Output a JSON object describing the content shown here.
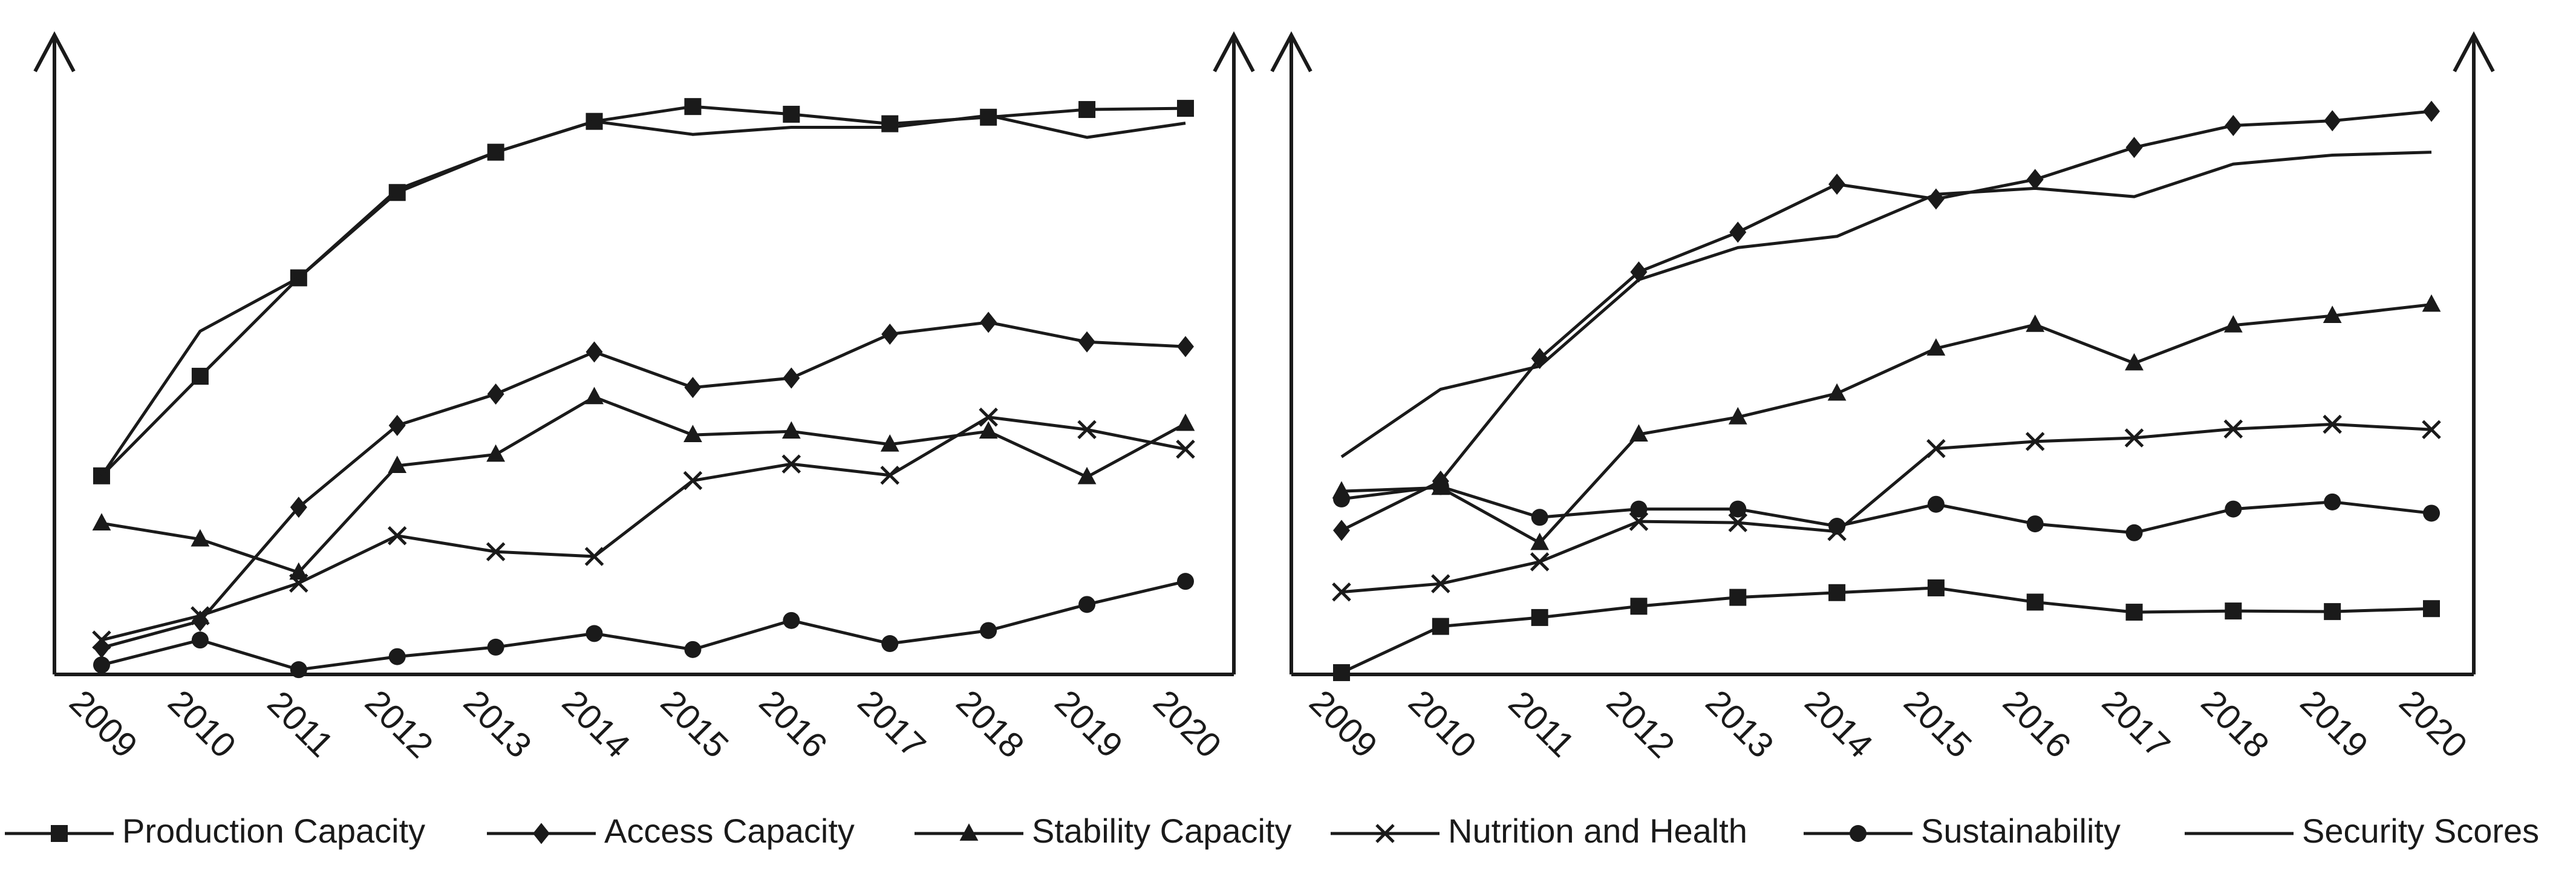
{
  "chart_data": [
    {
      "type": "line",
      "title": "",
      "xlabel": "",
      "ylabel": "",
      "categories": [
        "2009",
        "2010",
        "2011",
        "2012",
        "2013",
        "2014",
        "2015",
        "2016",
        "2017",
        "2018",
        "2019",
        "2020"
      ],
      "ylim": [
        0,
        100
      ],
      "grid": false,
      "series": [
        {
          "name": "Production Capacity",
          "marker": "square",
          "values": [
            33.5,
            50.3,
            66.9,
            81.3,
            88.1,
            93.3,
            95.8,
            94.5,
            92.9,
            94.0,
            95.3,
            95.5
          ]
        },
        {
          "name": "Access Capacity",
          "marker": "diamond",
          "values": [
            4.5,
            9.0,
            28.2,
            42.0,
            47.3,
            54.4,
            48.4,
            50.0,
            57.4,
            59.4,
            56.1,
            55.3
          ]
        },
        {
          "name": "Stability Capacity",
          "marker": "triangle",
          "values": [
            25.5,
            22.8,
            17.2,
            35.2,
            37.1,
            46.8,
            40.4,
            41.0,
            38.8,
            41.0,
            33.3,
            42.3
          ]
        },
        {
          "name": "Nutrition and Health",
          "marker": "x",
          "values": [
            5.8,
            9.9,
            15.4,
            23.4,
            20.7,
            19.9,
            32.7,
            35.5,
            33.6,
            43.4,
            41.3,
            38.0
          ]
        },
        {
          "name": "Sustainability",
          "marker": "circle",
          "values": [
            1.6,
            5.8,
            0.8,
            3.0,
            4.6,
            6.9,
            4.2,
            9.1,
            5.2,
            7.4,
            11.8,
            15.7
          ]
        },
        {
          "name": "Security Scores",
          "marker": "dash",
          "values": [
            33.5,
            57.9,
            66.9,
            81.8,
            88.1,
            93.3,
            91.1,
            92.3,
            92.3,
            94.3,
            90.6,
            93.0
          ]
        }
      ]
    },
    {
      "type": "line",
      "title": "",
      "xlabel": "",
      "ylabel": "",
      "categories": [
        "2009",
        "2010",
        "2011",
        "2012",
        "2013",
        "2014",
        "2015",
        "2016",
        "2017",
        "2018",
        "2019",
        "2020"
      ],
      "ylim": [
        0,
        100
      ],
      "grid": false,
      "series": [
        {
          "name": "Production Capacity",
          "marker": "square",
          "values": [
            0.3,
            8.1,
            9.6,
            11.5,
            13.0,
            13.8,
            14.6,
            12.2,
            10.5,
            10.7,
            10.6,
            11.1
          ]
        },
        {
          "name": "Access Capacity",
          "marker": "diamond",
          "values": [
            24.3,
            32.6,
            53.3,
            67.9,
            74.6,
            82.7,
            80.2,
            83.5,
            88.9,
            92.6,
            93.4,
            95.0
          ]
        },
        {
          "name": "Stability Capacity",
          "marker": "triangle",
          "values": [
            30.9,
            31.5,
            22.2,
            40.5,
            43.4,
            47.4,
            55.0,
            59.0,
            52.5,
            58.9,
            60.5,
            62.4
          ]
        },
        {
          "name": "Nutrition and Health",
          "marker": "x",
          "values": [
            13.9,
            15.3,
            19.0,
            25.8,
            25.6,
            24.1,
            38.1,
            39.3,
            39.9,
            41.4,
            42.2,
            41.3
          ]
        },
        {
          "name": "Sustainability",
          "marker": "circle",
          "values": [
            29.6,
            31.7,
            26.5,
            27.9,
            27.9,
            25.0,
            28.7,
            25.4,
            23.9,
            27.9,
            29.1,
            27.2
          ]
        },
        {
          "name": "Security Scores",
          "marker": "dash",
          "values": [
            36.7,
            48.1,
            52.0,
            66.6,
            72.0,
            73.9,
            81.0,
            82.0,
            80.6,
            86.1,
            87.6,
            88.1
          ]
        }
      ]
    }
  ],
  "legend": {
    "placement": "bottom",
    "entries": [
      {
        "label": "Production Capacity",
        "marker": "square"
      },
      {
        "label": "Access Capacity",
        "marker": "diamond"
      },
      {
        "label": "Stability Capacity",
        "marker": "triangle"
      },
      {
        "label": "Nutrition and Health",
        "marker": "x"
      },
      {
        "label": "Sustainability",
        "marker": "circle"
      },
      {
        "label": "Security Scores",
        "marker": "dash"
      }
    ]
  },
  "colors": {
    "ink": "#1a1a1a",
    "background": "#ffffff"
  }
}
